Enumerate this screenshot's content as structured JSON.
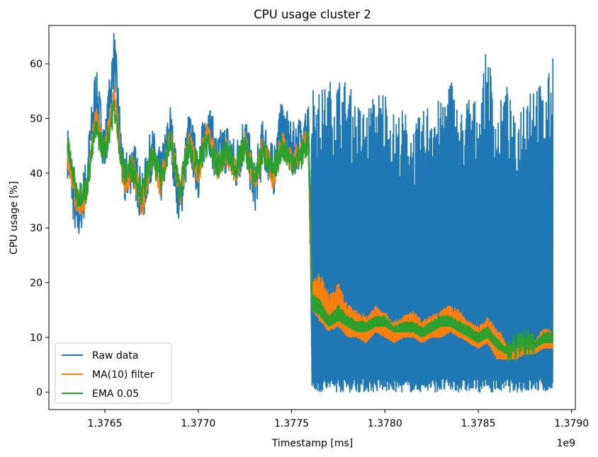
{
  "chart_data": {
    "type": "line",
    "title": "CPU usage cluster 2",
    "xlabel": "Timestamp [ms]",
    "ylabel": "CPU usage [%]",
    "x_offset_label": "1e9",
    "xlim": [
      1.3762,
      1.37902
    ],
    "ylim": [
      -3.2,
      67.0
    ],
    "x_ticks": [
      1.3765,
      1.377,
      1.3775,
      1.378,
      1.3785,
      1.379
    ],
    "x_tick_labels": [
      "1.3765",
      "1.3770",
      "1.3775",
      "1.3780",
      "1.3785",
      "1.3790"
    ],
    "y_ticks": [
      0,
      10,
      20,
      30,
      40,
      50,
      60
    ],
    "y_tick_labels": [
      "0",
      "10",
      "20",
      "30",
      "40",
      "50",
      "60"
    ],
    "grid": false,
    "legend_position": "lower-left",
    "series": [
      {
        "name": "Raw data",
        "color": "#1f77b4",
        "x": [
          1.3763,
          1.37635,
          1.3764,
          1.37645,
          1.3765,
          1.37655,
          1.3766,
          1.37665,
          1.3767,
          1.37675,
          1.3768,
          1.37685,
          1.3769,
          1.37695,
          1.377,
          1.37705,
          1.3771,
          1.37715,
          1.3772,
          1.37725,
          1.3773,
          1.37735,
          1.3774,
          1.37745,
          1.3775,
          1.37755,
          1.37759,
          1.3776,
          1.37761,
          1.37765,
          1.3777,
          1.37775,
          1.3778,
          1.37785,
          1.3779,
          1.37795,
          1.378,
          1.37805,
          1.3781,
          1.37815,
          1.3782,
          1.37825,
          1.3783,
          1.37835,
          1.3784,
          1.37845,
          1.3785,
          1.37855,
          1.3786,
          1.37865,
          1.3787,
          1.37875,
          1.3788,
          1.37885,
          1.3789
        ],
        "y": [
          44,
          31,
          38,
          55,
          44,
          62,
          38,
          42,
          35,
          44,
          39,
          48,
          34,
          47,
          40,
          50,
          42,
          45,
          41,
          47,
          37,
          46,
          40,
          49,
          44,
          46,
          48,
          30,
          57,
          55,
          57,
          58,
          57,
          53,
          52,
          55,
          56,
          51,
          52,
          49,
          51,
          55,
          53,
          59,
          51,
          55,
          53,
          64,
          51,
          57,
          49,
          57,
          59,
          55,
          61
        ],
        "y_low": [
          44,
          31,
          38,
          55,
          44,
          62,
          38,
          42,
          35,
          44,
          39,
          48,
          34,
          47,
          40,
          50,
          42,
          45,
          41,
          47,
          37,
          46,
          40,
          49,
          44,
          46,
          48,
          30,
          0,
          0,
          0,
          0,
          0,
          0,
          0,
          0,
          0,
          0,
          0,
          0,
          0,
          0,
          0,
          0,
          0,
          0,
          0,
          0,
          0,
          0,
          0,
          0,
          0,
          0,
          0
        ]
      },
      {
        "name": "MA(10) filter",
        "color": "#ff7f0e",
        "x": [
          1.3763,
          1.37635,
          1.3764,
          1.37645,
          1.3765,
          1.37655,
          1.3766,
          1.37665,
          1.3767,
          1.37675,
          1.3768,
          1.37685,
          1.3769,
          1.37695,
          1.377,
          1.37705,
          1.3771,
          1.37715,
          1.3772,
          1.37725,
          1.3773,
          1.37735,
          1.3774,
          1.37745,
          1.3775,
          1.37755,
          1.37759,
          1.3776,
          1.37761,
          1.37765,
          1.3777,
          1.37775,
          1.3778,
          1.37785,
          1.3779,
          1.37795,
          1.378,
          1.37805,
          1.3781,
          1.37815,
          1.3782,
          1.37825,
          1.3783,
          1.37835,
          1.3784,
          1.37845,
          1.3785,
          1.37855,
          1.3786,
          1.37865,
          1.3787,
          1.37875,
          1.3788,
          1.37885,
          1.3789
        ],
        "y": [
          44,
          34,
          36,
          50,
          44,
          54,
          38,
          41,
          34,
          43,
          38,
          47,
          36,
          46,
          40,
          48,
          41,
          44,
          40,
          46,
          38,
          45,
          39,
          46,
          42,
          44,
          46,
          30,
          20,
          22,
          18,
          20,
          16,
          15,
          14,
          16,
          15,
          13,
          14,
          15,
          13,
          14,
          15,
          16,
          15,
          13,
          12,
          14,
          12,
          9,
          8,
          10,
          9,
          12,
          11
        ],
        "y_low": [
          44,
          34,
          36,
          50,
          44,
          54,
          38,
          41,
          34,
          43,
          38,
          47,
          36,
          46,
          40,
          48,
          41,
          44,
          40,
          46,
          38,
          45,
          39,
          46,
          42,
          44,
          46,
          30,
          15,
          13,
          11,
          12,
          10,
          10,
          9,
          11,
          10,
          9,
          10,
          10,
          9,
          10,
          10,
          11,
          10,
          9,
          8,
          9,
          6,
          6,
          6,
          7,
          7,
          8,
          8
        ]
      },
      {
        "name": "EMA 0.05",
        "color": "#2ca02c",
        "x": [
          1.3763,
          1.37635,
          1.3764,
          1.37645,
          1.3765,
          1.37655,
          1.3766,
          1.37665,
          1.3767,
          1.37675,
          1.3768,
          1.37685,
          1.3769,
          1.37695,
          1.377,
          1.37705,
          1.3771,
          1.37715,
          1.3772,
          1.37725,
          1.3773,
          1.37735,
          1.3774,
          1.37745,
          1.3775,
          1.37755,
          1.37759,
          1.3776,
          1.37761,
          1.37765,
          1.3777,
          1.37775,
          1.3778,
          1.37785,
          1.3779,
          1.37795,
          1.378,
          1.37805,
          1.3781,
          1.37815,
          1.3782,
          1.37825,
          1.3783,
          1.37835,
          1.3784,
          1.37845,
          1.3785,
          1.37855,
          1.3786,
          1.37865,
          1.3787,
          1.37875,
          1.3788,
          1.37885,
          1.3789
        ],
        "y": [
          45,
          36,
          37,
          48,
          44,
          52,
          40,
          41,
          36,
          43,
          39,
          46,
          37,
          45,
          41,
          46,
          41,
          44,
          41,
          45,
          39,
          44,
          40,
          45,
          42,
          43,
          46,
          34,
          18,
          17,
          14,
          16,
          14,
          13,
          13,
          14,
          14,
          12,
          13,
          13,
          12,
          13,
          14,
          14,
          13,
          12,
          11,
          12,
          10,
          8,
          8,
          9,
          9,
          11,
          11
        ],
        "y_low": [
          45,
          36,
          37,
          48,
          44,
          52,
          40,
          41,
          36,
          43,
          39,
          46,
          37,
          45,
          41,
          46,
          41,
          44,
          41,
          45,
          39,
          44,
          40,
          45,
          42,
          43,
          46,
          34,
          15,
          14,
          12,
          13,
          12,
          11,
          11,
          12,
          12,
          11,
          11,
          11,
          10,
          11,
          12,
          12,
          11,
          10,
          9,
          10,
          8,
          7,
          7,
          8,
          8,
          9,
          9
        ]
      }
    ]
  }
}
